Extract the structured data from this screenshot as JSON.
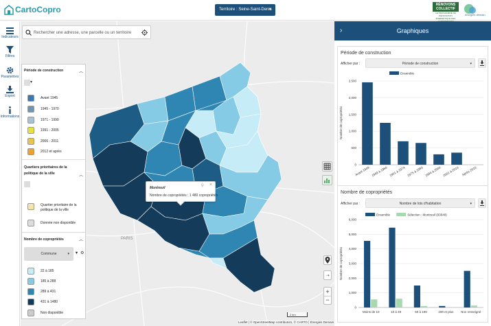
{
  "app": {
    "logo_text": "CartoCopro",
    "territory_label": "Territoire : Seine-Saint-Denis",
    "partner_logo_text": "RÉNOVONS COLLECTIF",
    "partner_logo_sub": "LE PROGRAMME DE RÉNOVATION ÉNERGÉTIQUE DES COPROPRIÉTÉS",
    "partner2_text": "énergies demain"
  },
  "sidebar": {
    "items": [
      {
        "label": "Indicateurs",
        "icon": "list-icon"
      },
      {
        "label": "Filtres",
        "icon": "filter-icon"
      },
      {
        "label": "Paramètres",
        "icon": "gear-icon"
      },
      {
        "label": "Export",
        "icon": "download-icon"
      },
      {
        "label": "Informations",
        "icon": "info-icon"
      }
    ]
  },
  "search": {
    "placeholder": "Rechercher une adresse, une parcelle ou un territoire"
  },
  "legend": {
    "period_title": "Période de construction",
    "period_items": [
      {
        "label": "Avant 1945",
        "color": "#3a78b5"
      },
      {
        "label": "1945 - 1970",
        "color": "#6f95b5"
      },
      {
        "label": "1971 - 1990",
        "color": "#aac0d4"
      },
      {
        "label": "1991 - 2005",
        "color": "#e5e23a"
      },
      {
        "label": "2006 - 2011",
        "color": "#e8c44a"
      },
      {
        "label": "2012 et après",
        "color": "#f0a030"
      }
    ],
    "qpv_title": "Quartiers prioritaires de la politique de la ville",
    "qpv_items": [
      {
        "label": "Quartier prioritaire de la politique de la ville",
        "color": "#f7e4a8"
      },
      {
        "label": "Donnée non disponible",
        "color": "#dddddd"
      }
    ],
    "count_title": "Nombre de copropriétés",
    "count_select": "Commune",
    "count_items": [
      {
        "label": "22 à 185",
        "color": "#c6ecf7"
      },
      {
        "label": "185 à 288",
        "color": "#86cbe6"
      },
      {
        "label": "289 à 431",
        "color": "#2f86b2"
      },
      {
        "label": "431 à 1480",
        "color": "#143c5a"
      },
      {
        "label": "Non disponible",
        "color": "#cccccc"
      }
    ]
  },
  "popup": {
    "title": "Montreuil",
    "value": "Nombre de copropriétés : 1 480 copropriétés"
  },
  "map": {
    "attribution": "Leaflet | © OpenStreetMap contributors, © CARTO | Énergies Demain",
    "scale": "2 km",
    "place_label": "PARIS"
  },
  "panel": {
    "title": "Graphiques",
    "card1": {
      "title": "Période de construction",
      "show_label": "Afficher par :",
      "select_value": "Période de construction"
    },
    "card2": {
      "title": "Nombre de copropriétés",
      "show_label": "Afficher par :",
      "select_value": "Nombre de lots d'habitation"
    }
  },
  "chart_data": [
    {
      "type": "bar",
      "title": "",
      "ylabel": "Nombre de copropriétés",
      "categories": [
        "Avant 1949",
        "1949 à 1960",
        "1961 à 1974",
        "1975 à 1993",
        "1994 à 2000",
        "2001 à 2010",
        "Après 2010"
      ],
      "series": [
        {
          "name": "Ensemble",
          "values": [
            2460,
            1250,
            700,
            650,
            310,
            360,
            0
          ],
          "color": "#1c4f7a"
        }
      ],
      "ylim": [
        0,
        2500
      ],
      "yticks": [
        0,
        500,
        1000,
        1500,
        2000,
        2500
      ]
    },
    {
      "type": "bar",
      "title": "",
      "ylabel": "Nombre de copropriétés",
      "categories": [
        "Moins de 10",
        "10 à 49",
        "50 à 199",
        "200 et plus",
        "Non renseigné"
      ],
      "series": [
        {
          "name": "Ensemble",
          "values": [
            4550,
            5450,
            1500,
            100,
            2500
          ],
          "color": "#1c4f7a"
        },
        {
          "name": "Sélection : Montreuil (93048)",
          "values": [
            550,
            600,
            100,
            20,
            130
          ],
          "color": "#a8d8b0"
        }
      ],
      "ylim": [
        0,
        6000
      ],
      "yticks": [
        0,
        1000,
        2000,
        3000,
        4000,
        5000,
        6000
      ]
    }
  ]
}
